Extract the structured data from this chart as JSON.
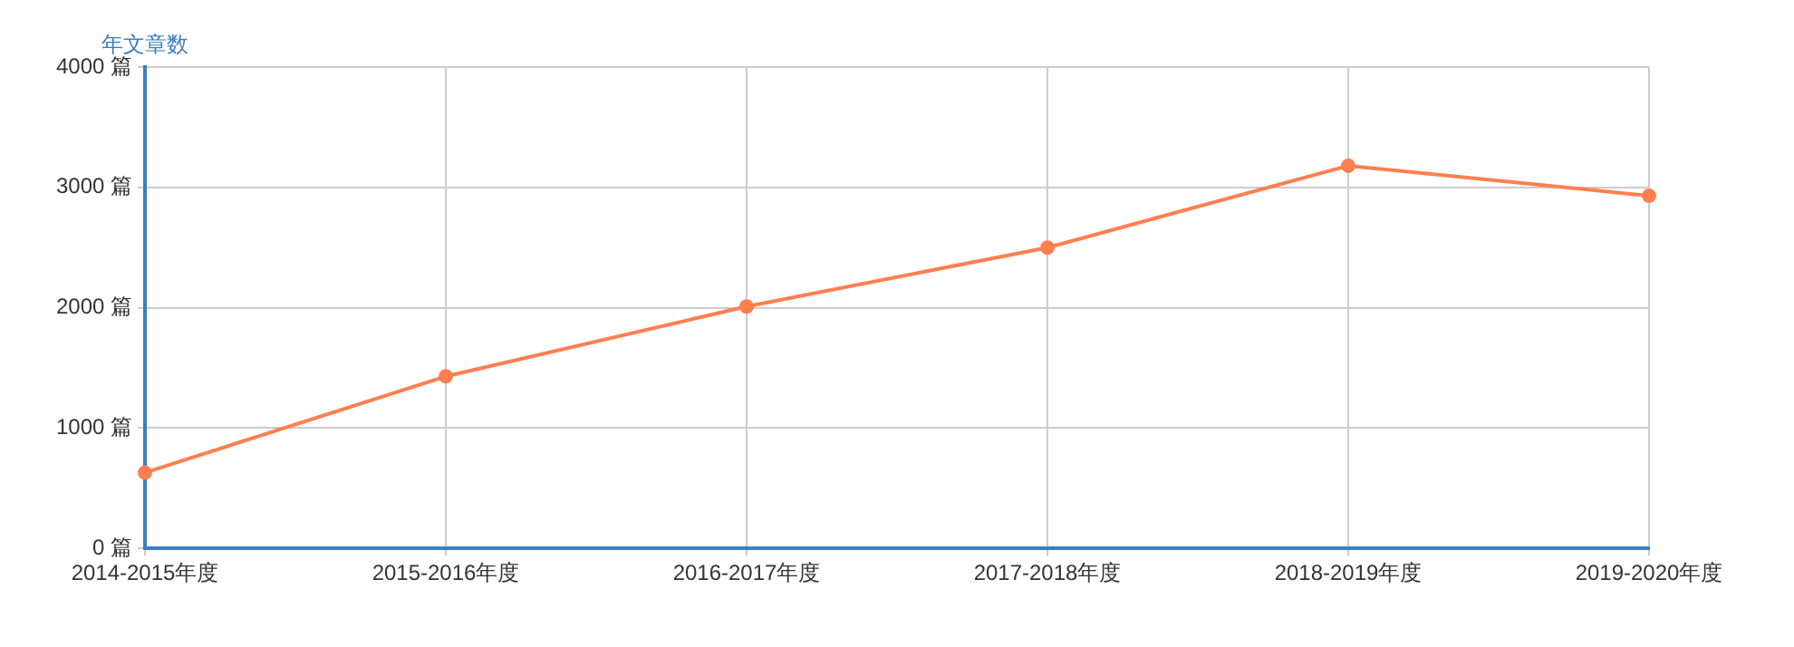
{
  "chart_data": {
    "type": "line",
    "ylabel": "年文章数",
    "categories": [
      "2014-2015年度",
      "2015-2016年度",
      "2016-2017年度",
      "2017-2018年度",
      "2018-2019年度",
      "2019-2020年度"
    ],
    "series": [
      {
        "color": "#ff7f50",
        "values": [
          630,
          1430,
          2010,
          2500,
          3180,
          2930
        ]
      }
    ],
    "ylim": [
      0,
      4000
    ],
    "yticks": [
      {
        "value": 0,
        "label": "0 篇"
      },
      {
        "value": 1000,
        "label": "1000 篇"
      },
      {
        "value": 2000,
        "label": "2000 篇"
      },
      {
        "value": 3000,
        "label": "3000 篇"
      },
      {
        "value": 4000,
        "label": "4000 篇"
      }
    ],
    "grid": true,
    "legend": false,
    "marker": "circle",
    "line_style": "solid"
  }
}
